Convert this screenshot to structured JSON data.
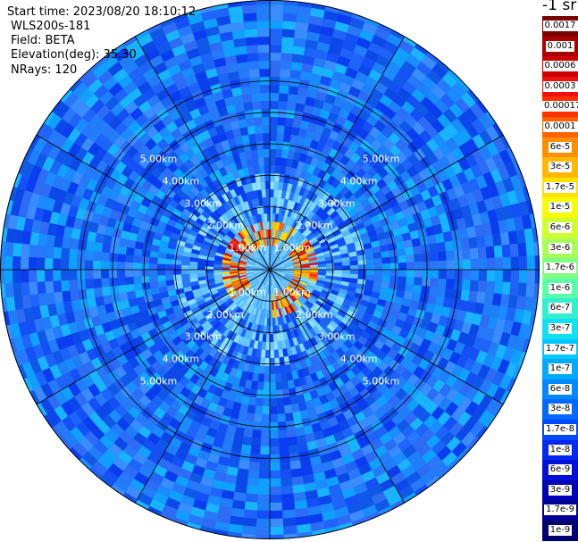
{
  "info": {
    "start_time": "Start time: 2023/08/20 18:10:12",
    "instrument": "WLS200s-181",
    "field": "Field: BETA",
    "elevation": "Elevation(deg): 35.30",
    "nrays": "NRays: 120"
  },
  "colorbar": {
    "title": "-1 sr",
    "levels": [
      {
        "label": "0.0017",
        "color": "#7a0000"
      },
      {
        "label": "0.001",
        "color": "#a80000"
      },
      {
        "label": "0.0006",
        "color": "#cc0000"
      },
      {
        "label": "0.0003",
        "color": "#ee1010"
      },
      {
        "label": "0.00017",
        "color": "#ff3000"
      },
      {
        "label": "0.0001",
        "color": "#ff6000"
      },
      {
        "label": "6e-5",
        "color": "#ff9000"
      },
      {
        "label": "3e-5",
        "color": "#ffb800"
      },
      {
        "label": "1.7e-5",
        "color": "#ffe000"
      },
      {
        "label": "1e-5",
        "color": "#f4ff00"
      },
      {
        "label": "6e-6",
        "color": "#d0ff30"
      },
      {
        "label": "3e-6",
        "color": "#a8ff58"
      },
      {
        "label": "1.7e-6",
        "color": "#80ff80"
      },
      {
        "label": "1e-6",
        "color": "#58ffa8"
      },
      {
        "label": "6e-7",
        "color": "#30f0d0"
      },
      {
        "label": "3e-7",
        "color": "#10e0f0"
      },
      {
        "label": "1.7e-7",
        "color": "#00c8ff"
      },
      {
        "label": "1e-7",
        "color": "#00a8ff"
      },
      {
        "label": "6e-8",
        "color": "#0088ff"
      },
      {
        "label": "3e-8",
        "color": "#0068ff"
      },
      {
        "label": "1.7e-8",
        "color": "#0048ff"
      },
      {
        "label": "1e-8",
        "color": "#0028f0"
      },
      {
        "label": "6e-9",
        "color": "#0010d8"
      },
      {
        "label": "3e-9",
        "color": "#0000b8"
      },
      {
        "label": "1.7e-9",
        "color": "#000098"
      },
      {
        "label": "1e-9",
        "color": "#000070"
      }
    ]
  },
  "chart_data": {
    "type": "heatmap",
    "projection": "polar",
    "ring_labels": [
      "1.00km",
      "2.00km",
      "3.00km",
      "4.00km",
      "5.00km"
    ],
    "ring_ranges_km": [
      1,
      2,
      3,
      4,
      5,
      6
    ],
    "max_range_km": 6.0,
    "spokes_deg": [
      0,
      30,
      60,
      90,
      120,
      150,
      180,
      210,
      240,
      270,
      300,
      330
    ],
    "field": "BETA",
    "units": "-1 sr",
    "colors": {
      "background_field": "#1e6cf0",
      "near_ring_high": "#ff8c00"
    }
  }
}
